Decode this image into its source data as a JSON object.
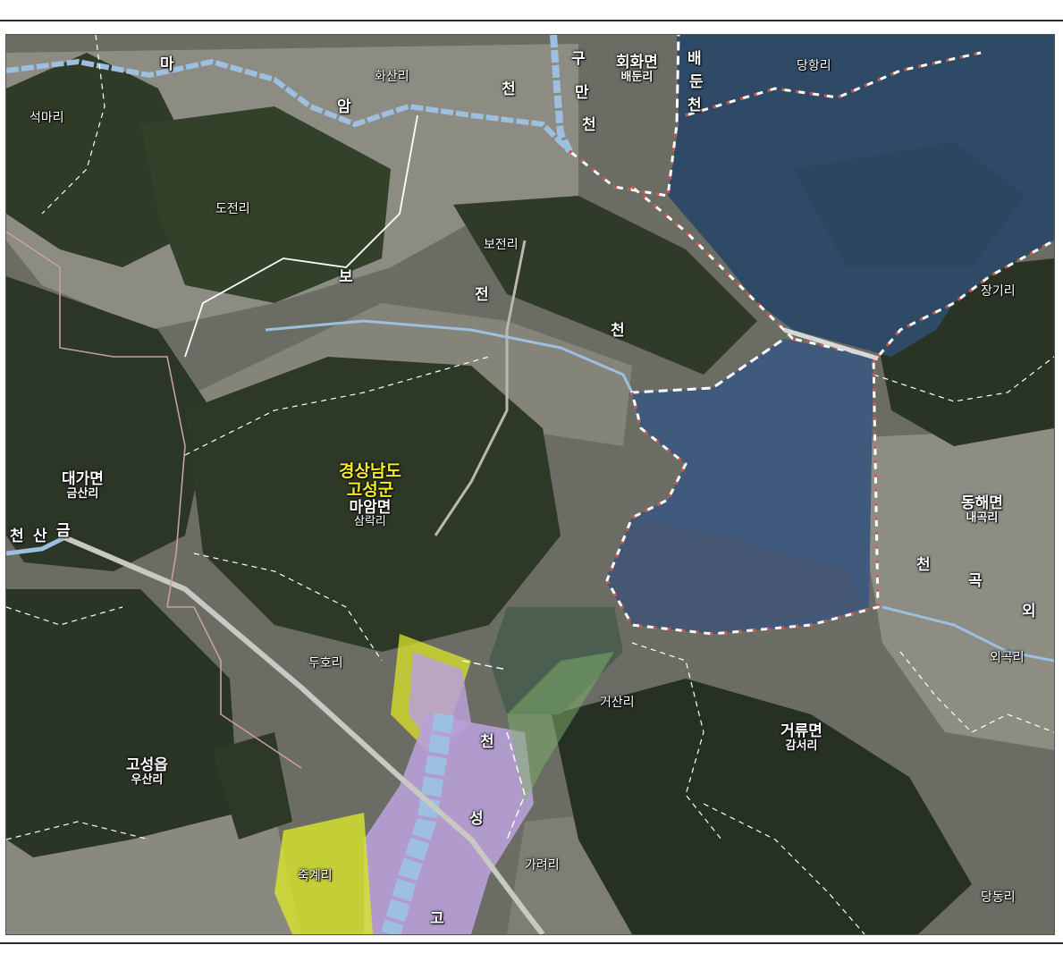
{
  "map": {
    "province": "경상남도",
    "county": "고성군",
    "townships": [
      {
        "name": "회화면",
        "village": "배둔리"
      },
      {
        "name": "대가면",
        "village": "금산리"
      },
      {
        "name": "마암면",
        "village": "삼락리"
      },
      {
        "name": "동해면",
        "village": "내곡리"
      },
      {
        "name": "거류면",
        "village": "감서리"
      },
      {
        "name": "고성읍",
        "village": "우산리"
      }
    ],
    "villages": [
      "석마리",
      "화산리",
      "당항리",
      "도전리",
      "보전리",
      "장기리",
      "두호리",
      "거산리",
      "외곡리",
      "죽계리",
      "가려리",
      "당동리"
    ],
    "streams": {
      "maam": [
        "마",
        "암",
        "천"
      ],
      "guman": [
        "구",
        "만",
        "천"
      ],
      "baedun": [
        "배",
        "둔",
        "천"
      ],
      "bojeon": [
        "보",
        "전",
        "천"
      ],
      "geumsan": [
        "금",
        "산",
        "천"
      ],
      "goseong": [
        "고",
        "성",
        "천"
      ],
      "oegok": [
        "천",
        "곡",
        "외"
      ]
    },
    "colors": {
      "sea": "#2f4a66",
      "lake": "#3f5a7c",
      "mountain": "#2f3a26",
      "field": "#8a8a80",
      "boundary": "#c8a0a0",
      "levee": "#ffffff",
      "levee_marker": "#d94a3a",
      "river": "#9dbfe0",
      "zone_purple": "#b9a0d8",
      "zone_yellow": "#dbe62a",
      "label_highlight": "#f3ea2a"
    }
  }
}
